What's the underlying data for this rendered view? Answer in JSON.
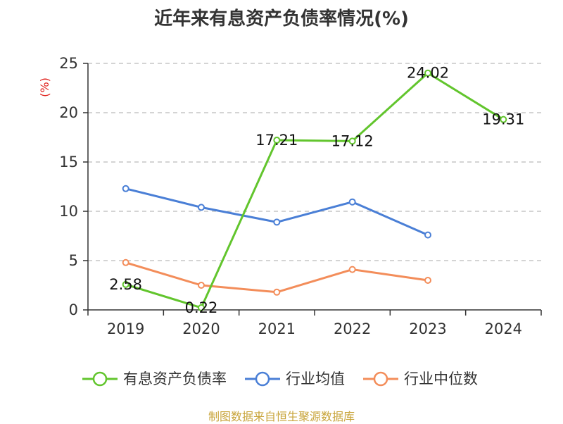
{
  "title": "近年来有息资产负债率情况(%)",
  "source_note": "制图数据来自恒生聚源数据库",
  "colors": {
    "series": [
      "#62c52d",
      "#4a7fd6",
      "#f38d5a"
    ],
    "unit": "#e0201b",
    "source": "#c8a43a",
    "axis": "#333333",
    "grid": "#bbbbbb"
  },
  "chart_data": {
    "type": "line",
    "x": [
      "2019",
      "2020",
      "2021",
      "2022",
      "2023",
      "2024"
    ],
    "ylabel": "(%)",
    "ylim": [
      0,
      25
    ],
    "yticks": [
      0,
      5,
      10,
      15,
      20,
      25
    ],
    "grid": true,
    "legend_position": "bottom",
    "series": [
      {
        "name": "有息资产负债率",
        "values": [
          2.58,
          0.22,
          17.21,
          17.12,
          24.02,
          19.31
        ],
        "labels": [
          "2.58",
          "0.22",
          "17.21",
          "17.12",
          "24.02",
          "19.31"
        ]
      },
      {
        "name": "行业均值",
        "values": [
          12.3,
          10.4,
          8.9,
          10.95,
          7.6,
          null
        ]
      },
      {
        "name": "行业中位数",
        "values": [
          4.8,
          2.5,
          1.8,
          4.1,
          3.0,
          null
        ]
      }
    ]
  }
}
